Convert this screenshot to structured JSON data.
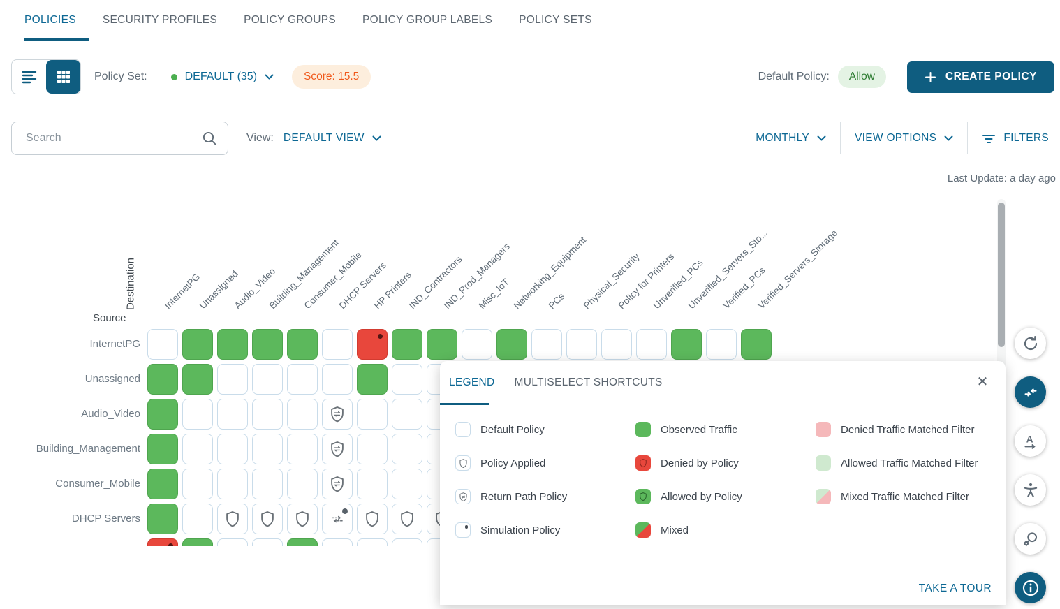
{
  "nav": {
    "tabs": [
      {
        "label": "POLICIES",
        "active": true
      },
      {
        "label": "SECURITY PROFILES",
        "active": false
      },
      {
        "label": "POLICY GROUPS",
        "active": false
      },
      {
        "label": "POLICY GROUP LABELS",
        "active": false
      },
      {
        "label": "POLICY SETS",
        "active": false
      }
    ]
  },
  "toolbar": {
    "policy_set_label": "Policy Set:",
    "policy_set_value": "DEFAULT (35)",
    "score_badge": "Score: 15.5",
    "default_policy_label": "Default Policy:",
    "default_policy_value": "Allow",
    "create_policy_button": "CREATE POLICY"
  },
  "filterbar": {
    "search_placeholder": "Search",
    "view_label": "View:",
    "view_value": "DEFAULT VIEW",
    "period_selector": "MONTHLY",
    "view_options": "VIEW OPTIONS",
    "filters": "FILTERS"
  },
  "status": {
    "last_update": "Last Update: a day ago"
  },
  "matrix": {
    "source_label": "Source",
    "destination_label": "Destination",
    "columns": [
      "InternetPG",
      "Unassigned",
      "Audio_Video",
      "Building_Management",
      "Consumer_Mobile",
      "DHCP Servers",
      "HP Printers",
      "IND_Contractors",
      "IND_Prod_Managers",
      "Misc_IoT",
      "Networking_Equipment",
      "PCs",
      "Physical_Security",
      "Policy for Printers",
      "Unverified_PCs",
      "Unverified_Servers_Sto...",
      "Verified_PCs",
      "Verified_Servers_Storage"
    ],
    "rows": [
      {
        "label": "InternetPG",
        "cells": [
          "default",
          "observed",
          "observed",
          "observed",
          "observed",
          "default",
          "denied_simulated",
          "observed",
          "observed",
          "default",
          "observed",
          "default",
          "default",
          "default",
          "default",
          "observed",
          "default",
          "observed"
        ]
      },
      {
        "label": "Unassigned",
        "cells": [
          "observed",
          "observed",
          "default",
          "default",
          "default",
          "default",
          "observed",
          "default",
          "default",
          "default",
          "default",
          "default",
          "default",
          "default",
          "default",
          "default",
          "default",
          "default"
        ]
      },
      {
        "label": "Audio_Video",
        "cells": [
          "observed",
          "default",
          "default",
          "default",
          "default",
          "return_path",
          "default",
          "default",
          "default",
          "default",
          "default",
          "default",
          "default",
          "default",
          "default",
          "default",
          "default",
          "default"
        ]
      },
      {
        "label": "Building_Management",
        "cells": [
          "observed",
          "default",
          "default",
          "default",
          "default",
          "return_path",
          "default",
          "default",
          "default",
          "default",
          "default",
          "default",
          "default",
          "default",
          "default",
          "default",
          "default",
          "default"
        ]
      },
      {
        "label": "Consumer_Mobile",
        "cells": [
          "observed",
          "default",
          "default",
          "default",
          "default",
          "return_path",
          "default",
          "default",
          "default",
          "default",
          "default",
          "default",
          "default",
          "default",
          "default",
          "default",
          "default",
          "default"
        ]
      },
      {
        "label": "DHCP Servers",
        "cells": [
          "observed",
          "default",
          "applied",
          "applied",
          "applied",
          "simulated_arrows",
          "applied",
          "applied",
          "applied",
          "default",
          "default",
          "default",
          "default",
          "default",
          "default",
          "default",
          "default",
          "default"
        ]
      },
      {
        "label": "",
        "cells": [
          "denied_simulated",
          "observed",
          "default",
          "default",
          "observed",
          "default",
          "default",
          "default",
          "default",
          "default",
          "default",
          "default",
          "default",
          "default",
          "default",
          "default",
          "default",
          "default"
        ]
      }
    ]
  },
  "legend": {
    "tabs": [
      {
        "label": "LEGEND",
        "active": true
      },
      {
        "label": "MULTISELECT SHORTCUTS",
        "active": false
      }
    ],
    "close_icon": "✕",
    "columns": [
      [
        {
          "icon": "default",
          "label": "Default Policy"
        },
        {
          "icon": "applied",
          "label": "Policy Applied"
        },
        {
          "icon": "return_path",
          "label": "Return Path Policy"
        },
        {
          "icon": "simulation",
          "label": "Simulation Policy"
        }
      ],
      [
        {
          "icon": "observed",
          "label": "Observed Traffic"
        },
        {
          "icon": "denied",
          "label": "Denied by Policy"
        },
        {
          "icon": "allowed",
          "label": "Allowed by Policy"
        },
        {
          "icon": "mixed",
          "label": "Mixed"
        }
      ],
      [
        {
          "icon": "denied_filter",
          "label": "Denied Traffic Matched Filter"
        },
        {
          "icon": "allowed_filter",
          "label": "Allowed Traffic Matched Filter"
        },
        {
          "icon": "mixed_filter",
          "label": "Mixed Traffic Matched Filter"
        }
      ]
    ],
    "take_a_tour": "TAKE A TOUR"
  },
  "fabs": [
    {
      "name": "refresh",
      "active": false
    },
    {
      "name": "collapse-arrows",
      "active": true
    },
    {
      "name": "sort-alphabetical",
      "active": false
    },
    {
      "name": "accessibility",
      "active": false
    },
    {
      "name": "search-settings",
      "active": false
    },
    {
      "name": "info",
      "active": true
    }
  ],
  "colors": {
    "primary": "#0f5d80",
    "link_blue": "#0d6894",
    "observed_green": "#5cb85c",
    "denied_red": "#e8473c",
    "denied_filter_pink": "#f5b8ba",
    "allowed_filter_green": "#cfe9cf",
    "score_orange": "#f0591c",
    "score_bg": "#fdeedd",
    "allow_green": "#2f7d33",
    "allow_bg": "#e4f3e4",
    "status_dot_green": "#4caf50",
    "cell_border_blue": "#c9dcea"
  }
}
